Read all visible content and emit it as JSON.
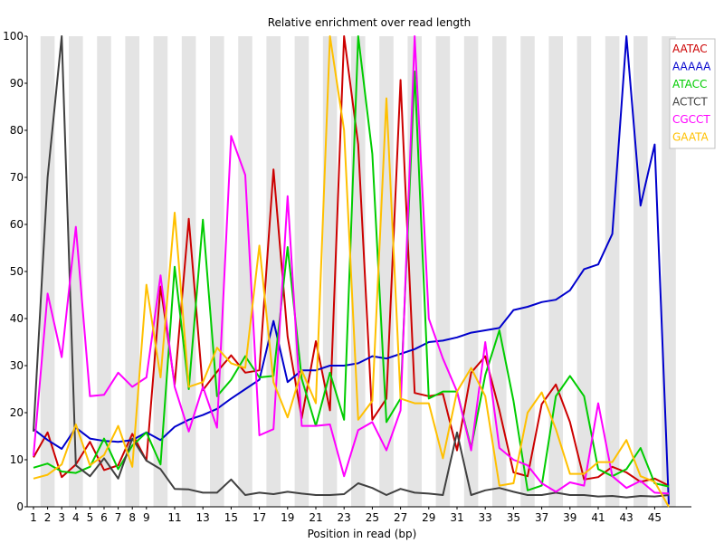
{
  "chart_data": {
    "type": "line",
    "title": "Relative enrichment over read length",
    "xlabel": "Position in read (bp)",
    "ylabel": "",
    "xlim": [
      1,
      46
    ],
    "ylim": [
      0,
      100
    ],
    "y_ticks": [
      0,
      10,
      20,
      30,
      40,
      50,
      60,
      70,
      80,
      90,
      100
    ],
    "x_tick_labels": [
      "1",
      "2",
      "3",
      "4",
      "5",
      "6",
      "7",
      "8",
      "9",
      "11",
      "13",
      "15",
      "17",
      "19",
      "21",
      "23",
      "25",
      "27",
      "29",
      "31",
      "33",
      "35",
      "37",
      "39",
      "41",
      "43",
      "45"
    ],
    "x_tick_positions": [
      1,
      2,
      3,
      4,
      5,
      6,
      7,
      8,
      9,
      11,
      13,
      15,
      17,
      19,
      21,
      23,
      25,
      27,
      29,
      31,
      33,
      35,
      37,
      39,
      41,
      43,
      45
    ],
    "grid": "alternating vertical bands",
    "legend_position": "top-right",
    "x": [
      1,
      2,
      3,
      4,
      5,
      6,
      7,
      8,
      9,
      10,
      11,
      12,
      13,
      14,
      15,
      16,
      17,
      18,
      19,
      20,
      21,
      22,
      23,
      24,
      25,
      26,
      27,
      28,
      29,
      30,
      31,
      32,
      33,
      34,
      35,
      36,
      37,
      38,
      39,
      40,
      41,
      42,
      43,
      44,
      45,
      46
    ],
    "series": [
      {
        "name": "AATAC",
        "color": "#cc0000",
        "values": [
          10.5,
          15.8,
          6.3,
          9.0,
          13.8,
          7.8,
          8.8,
          15.5,
          9.8,
          46.8,
          26.0,
          61.2,
          24.8,
          28.7,
          32.2,
          28.5,
          29.0,
          71.7,
          36.2,
          18.8,
          35.2,
          20.5,
          100,
          77.0,
          18.5,
          23.0,
          90.7,
          24.2,
          23.5,
          24.0,
          12.0,
          28.5,
          32.0,
          20.5,
          7.3,
          6.5,
          21.8,
          26.0,
          18.0,
          5.8,
          6.3,
          8.5,
          7.3,
          5.3,
          6.0,
          4.5
        ]
      },
      {
        "name": "AAAAA",
        "color": "#0000cc",
        "values": [
          16.5,
          14.2,
          12.3,
          16.8,
          14.5,
          14.0,
          13.8,
          14.2,
          15.8,
          14.2,
          17.0,
          18.5,
          19.5,
          20.8,
          23.0,
          25.0,
          27.0,
          39.5,
          26.5,
          29.0,
          29.0,
          30.0,
          30.0,
          30.5,
          32.0,
          31.5,
          32.5,
          33.5,
          35.0,
          35.3,
          36.0,
          37.0,
          37.5,
          38.0,
          41.8,
          42.5,
          43.5,
          44.0,
          46.0,
          50.5,
          51.5,
          58.0,
          100,
          64.0,
          77.0,
          0.5
        ]
      },
      {
        "name": "ATACC",
        "color": "#00cc00",
        "values": [
          8.3,
          9.2,
          7.5,
          7.2,
          8.5,
          14.5,
          8.0,
          13.0,
          15.8,
          9.0,
          51.0,
          25.0,
          61.0,
          23.5,
          27.0,
          32.0,
          27.5,
          27.8,
          55.2,
          27.2,
          17.2,
          28.5,
          18.5,
          100,
          75.0,
          18.0,
          23.0,
          92.5,
          23.0,
          24.5,
          24.5,
          12.5,
          28.0,
          37.5,
          22.5,
          3.5,
          4.5,
          23.5,
          27.8,
          23.5,
          8.0,
          6.5,
          8.0,
          12.5,
          5.0,
          4.3
        ]
      },
      {
        "name": "ACTCT",
        "color": "#404040",
        "values": [
          16.0,
          70.0,
          100,
          8.8,
          6.5,
          10.3,
          6.0,
          14.5,
          9.8,
          8.0,
          3.8,
          3.7,
          3.0,
          3.0,
          5.8,
          2.5,
          3.0,
          2.7,
          3.2,
          2.8,
          2.5,
          2.5,
          2.7,
          5.0,
          4.0,
          2.5,
          3.8,
          3.0,
          2.8,
          2.5,
          15.8,
          2.5,
          3.5,
          4.0,
          3.2,
          2.5,
          2.5,
          3.0,
          2.5,
          2.5,
          2.2,
          2.3,
          2.0,
          2.3,
          2.2,
          2.5
        ]
      },
      {
        "name": "CGCCT",
        "color": "#ff00ff",
        "values": [
          10.8,
          45.3,
          31.8,
          59.5,
          23.5,
          23.8,
          28.5,
          25.5,
          27.5,
          49.2,
          25.5,
          16.0,
          25.5,
          16.8,
          78.8,
          70.5,
          15.2,
          16.5,
          66.0,
          17.2,
          17.2,
          17.5,
          6.5,
          16.3,
          18.0,
          12.0,
          20.5,
          100,
          40.0,
          31.5,
          24.5,
          12.0,
          35.0,
          12.5,
          10.0,
          8.8,
          5.0,
          3.2,
          5.2,
          4.5,
          22.0,
          6.5,
          4.0,
          5.5,
          3.0,
          2.8
        ]
      },
      {
        "name": "GAATA",
        "color": "#ffc000",
        "values": [
          6.0,
          6.8,
          9.0,
          17.5,
          8.8,
          11.0,
          17.2,
          8.5,
          47.2,
          27.5,
          62.5,
          25.5,
          26.5,
          33.8,
          30.5,
          29.5,
          55.5,
          26.5,
          19.0,
          29.0,
          22.0,
          100,
          80.0,
          18.5,
          22.5,
          86.8,
          23.0,
          22.0,
          22.0,
          10.3,
          24.5,
          29.5,
          23.5,
          4.5,
          5.0,
          20.0,
          24.3,
          16.5,
          7.0,
          7.0,
          9.5,
          9.5,
          14.2,
          6.5,
          5.3,
          0.0
        ]
      }
    ]
  }
}
